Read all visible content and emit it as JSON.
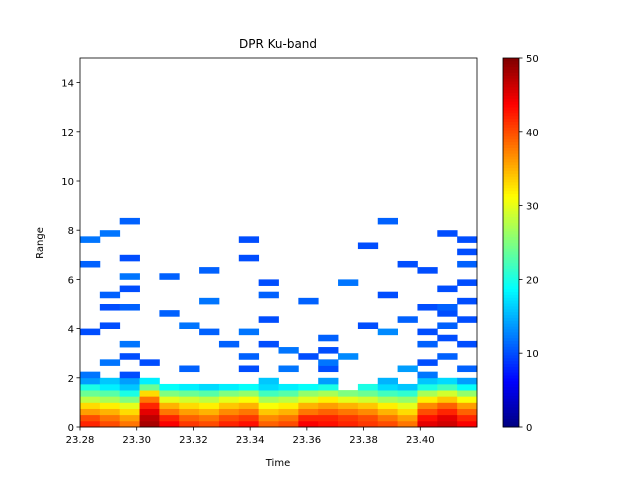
{
  "chart_data": {
    "type": "heatmap",
    "title": "DPR Ku-band",
    "x_label": "Time",
    "y_label": "Range",
    "colormap": "jet",
    "xlim": [
      23.28,
      23.42
    ],
    "ylim": [
      0,
      15
    ],
    "xticks": [
      23.28,
      {
        "value": 23.3,
        "label": "23.30"
      },
      23.32,
      23.34,
      23.36,
      23.38,
      {
        "value": 23.4,
        "label": "23.40"
      }
    ],
    "yticks": [
      0,
      2,
      4,
      6,
      8,
      10,
      12,
      14
    ],
    "clim": [
      0,
      50
    ],
    "cticks": [
      0,
      10,
      20,
      30,
      40,
      50
    ],
    "z": [
      [
        42,
        40,
        38,
        48,
        44,
        41,
        40,
        42,
        43,
        39,
        40,
        44,
        43,
        42,
        41,
        40,
        38,
        45,
        46,
        44
      ],
      [
        40,
        38,
        36,
        47,
        42,
        39,
        38,
        40,
        41,
        37,
        38,
        42,
        42,
        41,
        40,
        38,
        36,
        43,
        45,
        42
      ],
      [
        36,
        35,
        33,
        45,
        38,
        36,
        35,
        37,
        38,
        34,
        35,
        38,
        39,
        38,
        37,
        35,
        33,
        40,
        42,
        39
      ],
      [
        33,
        32,
        30,
        42,
        35,
        33,
        32,
        34,
        35,
        31,
        32,
        35,
        36,
        35,
        34,
        32,
        30,
        37,
        39,
        36
      ],
      [
        28,
        27,
        25,
        38,
        30,
        29,
        28,
        30,
        31,
        27,
        28,
        30,
        32,
        30,
        29,
        27,
        26,
        32,
        34,
        31
      ],
      [
        24,
        23,
        20,
        33,
        25,
        24,
        23,
        25,
        26,
        22,
        23,
        26,
        27,
        25,
        24,
        22,
        21,
        27,
        29,
        26
      ],
      [
        20,
        18,
        16,
        24,
        19,
        18,
        17,
        18,
        19,
        17,
        18,
        19,
        20,
        null,
        20,
        17,
        16,
        20,
        22,
        19
      ],
      [
        14,
        16,
        14,
        18,
        null,
        null,
        null,
        null,
        null,
        16,
        null,
        null,
        14,
        null,
        null,
        15,
        null,
        16,
        17,
        14
      ],
      [
        12,
        null,
        10,
        null,
        null,
        null,
        null,
        null,
        null,
        null,
        null,
        null,
        null,
        null,
        null,
        null,
        null,
        12,
        null,
        null
      ],
      [
        null,
        null,
        null,
        null,
        null,
        11,
        null,
        null,
        10,
        null,
        12,
        null,
        10,
        null,
        null,
        null,
        14,
        null,
        null,
        11
      ],
      [
        null,
        12,
        null,
        10,
        null,
        null,
        null,
        null,
        null,
        null,
        null,
        null,
        12,
        null,
        null,
        null,
        null,
        10,
        null,
        null
      ],
      [
        null,
        null,
        10,
        null,
        null,
        null,
        null,
        null,
        11,
        null,
        null,
        10,
        null,
        13,
        null,
        null,
        null,
        null,
        11,
        null
      ],
      [
        null,
        null,
        null,
        null,
        null,
        null,
        null,
        null,
        null,
        null,
        12,
        null,
        10,
        null,
        null,
        null,
        null,
        null,
        null,
        null
      ],
      [
        null,
        null,
        12,
        null,
        null,
        null,
        null,
        11,
        null,
        10,
        null,
        null,
        null,
        null,
        null,
        null,
        null,
        11,
        null,
        10
      ],
      [
        null,
        null,
        null,
        null,
        null,
        null,
        null,
        null,
        null,
        null,
        null,
        null,
        11,
        null,
        null,
        null,
        null,
        null,
        10,
        null
      ],
      [
        10,
        null,
        null,
        null,
        null,
        null,
        11,
        null,
        12,
        null,
        null,
        null,
        null,
        null,
        null,
        13,
        null,
        10,
        null,
        null
      ],
      [
        null,
        10,
        null,
        null,
        null,
        12,
        null,
        null,
        null,
        null,
        null,
        null,
        null,
        null,
        10,
        null,
        null,
        null,
        11,
        null
      ],
      [
        null,
        null,
        null,
        null,
        null,
        null,
        null,
        null,
        null,
        10,
        null,
        null,
        null,
        null,
        null,
        null,
        11,
        null,
        null,
        10
      ],
      [
        null,
        null,
        null,
        null,
        11,
        null,
        null,
        null,
        null,
        null,
        null,
        null,
        null,
        null,
        null,
        null,
        null,
        null,
        10,
        null
      ],
      [
        null,
        10,
        11,
        null,
        null,
        null,
        null,
        null,
        null,
        null,
        null,
        null,
        null,
        null,
        null,
        null,
        null,
        10,
        11,
        null
      ],
      [
        null,
        null,
        null,
        null,
        null,
        null,
        12,
        null,
        null,
        null,
        null,
        11,
        null,
        null,
        null,
        null,
        null,
        null,
        null,
        10
      ],
      [
        null,
        11,
        null,
        null,
        null,
        null,
        null,
        null,
        null,
        11,
        null,
        null,
        null,
        null,
        null,
        10,
        null,
        null,
        null,
        null
      ],
      [
        null,
        null,
        10,
        null,
        null,
        null,
        null,
        null,
        null,
        null,
        null,
        null,
        null,
        null,
        null,
        null,
        null,
        null,
        10,
        null
      ],
      [
        null,
        null,
        null,
        null,
        null,
        null,
        null,
        null,
        null,
        10,
        null,
        null,
        null,
        12,
        null,
        null,
        null,
        null,
        null,
        10
      ],
      [
        null,
        null,
        12,
        null,
        11,
        null,
        null,
        null,
        null,
        null,
        null,
        null,
        null,
        null,
        null,
        null,
        null,
        null,
        null,
        null
      ],
      [
        null,
        null,
        null,
        null,
        null,
        null,
        11,
        null,
        null,
        null,
        null,
        null,
        null,
        null,
        null,
        null,
        null,
        10,
        null,
        null
      ],
      [
        11,
        null,
        null,
        null,
        null,
        null,
        null,
        null,
        null,
        null,
        null,
        null,
        null,
        null,
        null,
        null,
        10,
        null,
        null,
        11
      ],
      [
        null,
        null,
        10,
        null,
        null,
        null,
        null,
        null,
        10,
        null,
        null,
        null,
        null,
        null,
        null,
        null,
        null,
        null,
        null,
        null
      ],
      [
        null,
        null,
        null,
        null,
        null,
        null,
        null,
        null,
        null,
        null,
        null,
        null,
        null,
        null,
        null,
        null,
        null,
        null,
        null,
        10
      ],
      [
        null,
        null,
        null,
        null,
        null,
        null,
        null,
        null,
        null,
        null,
        null,
        null,
        null,
        null,
        10,
        null,
        null,
        null,
        null,
        null
      ],
      [
        12,
        null,
        null,
        null,
        null,
        null,
        null,
        null,
        10,
        null,
        null,
        null,
        null,
        null,
        null,
        null,
        null,
        null,
        null,
        10
      ],
      [
        null,
        12,
        null,
        null,
        null,
        null,
        null,
        null,
        null,
        null,
        null,
        null,
        null,
        null,
        null,
        null,
        null,
        null,
        10,
        null
      ],
      [
        null,
        null,
        null,
        null,
        null,
        null,
        null,
        null,
        null,
        null,
        null,
        null,
        null,
        null,
        null,
        null,
        null,
        null,
        null,
        null
      ],
      [
        null,
        null,
        11,
        null,
        null,
        null,
        null,
        null,
        null,
        null,
        null,
        null,
        null,
        null,
        null,
        11,
        null,
        null,
        null,
        null
      ],
      [
        null,
        null,
        null,
        null,
        null,
        null,
        null,
        null,
        null,
        null,
        null,
        null,
        null,
        null,
        null,
        null,
        null,
        null,
        null,
        null
      ],
      [
        null,
        null,
        null,
        null,
        null,
        null,
        null,
        null,
        null,
        null,
        null,
        null,
        null,
        null,
        null,
        null,
        null,
        null,
        null,
        null
      ],
      [
        null,
        null,
        null,
        null,
        null,
        null,
        null,
        null,
        null,
        null,
        null,
        null,
        null,
        null,
        null,
        null,
        null,
        null,
        null,
        null
      ],
      [
        null,
        null,
        null,
        null,
        null,
        null,
        null,
        null,
        null,
        null,
        null,
        null,
        null,
        null,
        null,
        null,
        null,
        null,
        null,
        null
      ],
      [
        null,
        null,
        null,
        null,
        null,
        null,
        null,
        null,
        null,
        null,
        null,
        null,
        null,
        null,
        null,
        null,
        null,
        null,
        null,
        null
      ],
      [
        null,
        null,
        null,
        null,
        null,
        null,
        null,
        null,
        null,
        null,
        null,
        null,
        null,
        null,
        null,
        null,
        null,
        null,
        null,
        null
      ],
      [
        null,
        null,
        null,
        null,
        null,
        null,
        null,
        null,
        null,
        null,
        null,
        null,
        null,
        null,
        null,
        null,
        null,
        null,
        null,
        null
      ],
      [
        null,
        null,
        null,
        null,
        null,
        null,
        null,
        null,
        null,
        null,
        null,
        null,
        null,
        null,
        null,
        null,
        null,
        null,
        null,
        null
      ],
      [
        null,
        null,
        null,
        null,
        null,
        null,
        null,
        null,
        null,
        null,
        null,
        null,
        null,
        null,
        null,
        null,
        null,
        null,
        null,
        null
      ],
      [
        null,
        null,
        null,
        null,
        null,
        null,
        null,
        null,
        null,
        null,
        null,
        null,
        null,
        null,
        null,
        null,
        null,
        null,
        null,
        null
      ],
      [
        null,
        null,
        null,
        null,
        null,
        null,
        null,
        null,
        null,
        null,
        null,
        null,
        null,
        null,
        null,
        null,
        null,
        null,
        null,
        null
      ],
      [
        null,
        null,
        null,
        null,
        null,
        null,
        null,
        null,
        null,
        null,
        null,
        null,
        null,
        null,
        null,
        null,
        null,
        null,
        null,
        null
      ],
      [
        null,
        null,
        null,
        null,
        null,
        null,
        null,
        null,
        null,
        null,
        null,
        null,
        null,
        null,
        null,
        null,
        null,
        null,
        null,
        null
      ],
      [
        null,
        null,
        null,
        null,
        null,
        null,
        null,
        null,
        null,
        null,
        null,
        null,
        null,
        null,
        null,
        null,
        null,
        null,
        null,
        null
      ],
      [
        null,
        null,
        null,
        null,
        null,
        null,
        null,
        null,
        null,
        null,
        null,
        null,
        null,
        null,
        null,
        null,
        null,
        null,
        null,
        null
      ],
      [
        null,
        null,
        null,
        null,
        null,
        null,
        null,
        null,
        null,
        null,
        null,
        null,
        null,
        null,
        null,
        null,
        null,
        null,
        null,
        null
      ],
      [
        null,
        null,
        null,
        null,
        null,
        null,
        null,
        null,
        null,
        null,
        null,
        null,
        null,
        null,
        null,
        null,
        null,
        null,
        null,
        null
      ],
      [
        null,
        null,
        null,
        null,
        null,
        null,
        null,
        null,
        null,
        null,
        null,
        null,
        null,
        null,
        null,
        null,
        null,
        null,
        null,
        null
      ],
      [
        null,
        null,
        null,
        null,
        null,
        null,
        null,
        null,
        null,
        null,
        null,
        null,
        null,
        null,
        null,
        null,
        null,
        null,
        null,
        null
      ],
      [
        null,
        null,
        null,
        null,
        null,
        null,
        null,
        null,
        null,
        null,
        null,
        null,
        null,
        null,
        null,
        null,
        null,
        null,
        null,
        null
      ],
      [
        null,
        null,
        null,
        null,
        null,
        null,
        null,
        null,
        null,
        null,
        null,
        null,
        null,
        null,
        null,
        null,
        null,
        null,
        null,
        null
      ],
      [
        null,
        null,
        null,
        null,
        null,
        null,
        null,
        null,
        null,
        null,
        null,
        null,
        null,
        null,
        null,
        null,
        null,
        null,
        null,
        null
      ],
      [
        null,
        null,
        null,
        null,
        null,
        null,
        null,
        null,
        null,
        null,
        null,
        null,
        null,
        null,
        null,
        null,
        null,
        null,
        null,
        null
      ],
      [
        null,
        null,
        null,
        null,
        null,
        null,
        null,
        null,
        null,
        null,
        null,
        null,
        null,
        null,
        null,
        null,
        null,
        null,
        null,
        null
      ],
      [
        null,
        null,
        null,
        null,
        null,
        null,
        null,
        null,
        null,
        null,
        null,
        null,
        null,
        null,
        null,
        null,
        null,
        null,
        null,
        null
      ],
      [
        null,
        null,
        null,
        null,
        null,
        null,
        null,
        null,
        null,
        null,
        null,
        null,
        null,
        null,
        null,
        null,
        null,
        null,
        null,
        null
      ]
    ]
  }
}
